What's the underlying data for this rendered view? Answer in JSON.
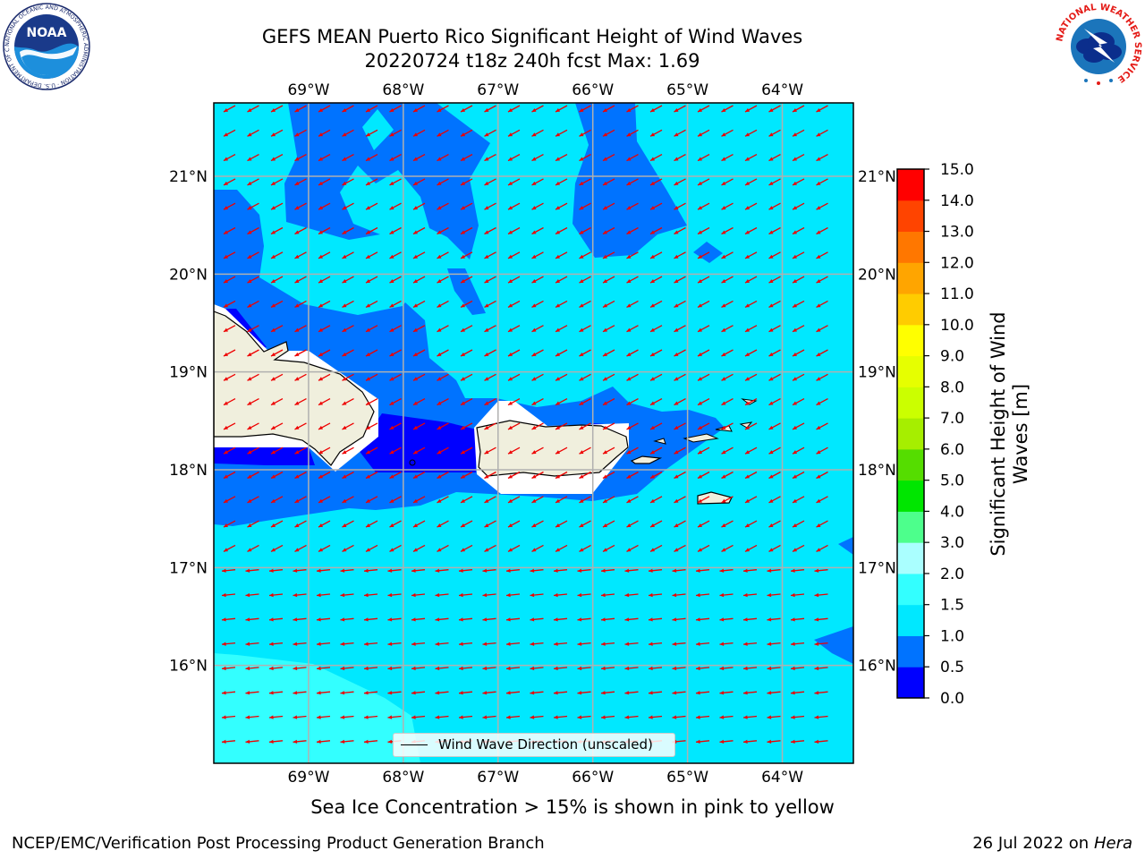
{
  "title": {
    "line1": "GEFS MEAN Puerto Rico Significant Height of Wind Waves",
    "line2": "20220724 t18z 240h fcst   Max: 1.69"
  },
  "map": {
    "lon_range": [
      -70,
      -63.25
    ],
    "lat_range": [
      15,
      21.75
    ],
    "lon_ticks": [
      {
        "value": -69,
        "label": "69°W"
      },
      {
        "value": -68,
        "label": "68°W"
      },
      {
        "value": -67,
        "label": "67°W"
      },
      {
        "value": -66,
        "label": "66°W"
      },
      {
        "value": -65,
        "label": "65°W"
      },
      {
        "value": -64,
        "label": "64°W"
      }
    ],
    "lat_ticks": [
      {
        "value": 21,
        "label": "21°N"
      },
      {
        "value": 20,
        "label": "20°N"
      },
      {
        "value": 19,
        "label": "19°N"
      },
      {
        "value": 18,
        "label": "18°N"
      },
      {
        "value": 17,
        "label": "17°N"
      },
      {
        "value": 16,
        "label": "16°N"
      }
    ],
    "grid": true,
    "wind_direction": "east-northeast to west-southwest",
    "colors": {
      "background_band": "#00ffff",
      "land": "#f0efdd",
      "grid": "#b0b0b0",
      "arrow": "#ee0000"
    }
  },
  "legend": {
    "label": "Wind Wave Direction (unscaled)",
    "placement": "lower-center"
  },
  "colorbar": {
    "title": "Significant Height of Wind Waves [m]",
    "levels": [
      "0.0",
      "0.5",
      "1.0",
      "1.5",
      "2.0",
      "3.0",
      "4.0",
      "5.0",
      "6.0",
      "7.0",
      "8.0",
      "9.0",
      "10.0",
      "11.0",
      "12.0",
      "13.0",
      "14.0",
      "15.0"
    ],
    "colors": [
      "#0000ff",
      "#0073ff",
      "#00e8ff",
      "#33ffff",
      "#aaffff",
      "#4dff8c",
      "#00e600",
      "#55dd00",
      "#a6ee00",
      "#cbff00",
      "#e6ff00",
      "#ffff00",
      "#ffcc00",
      "#ffa500",
      "#ff7700",
      "#ff4400",
      "#ff0000"
    ]
  },
  "footer": {
    "sea_ice_note": "Sea Ice Concentration > 15% is shown in pink to yellow",
    "branch": "NCEP/EMC/Verification Post Processing Product Generation Branch",
    "date_prefix": "26 Jul 2022 on",
    "date_machine": "Hera"
  },
  "logos": {
    "noaa_icon": "noaa-logo-icon",
    "noaa_text": "NOAA",
    "noaa_ring_text": "NATIONAL OCEANIC AND ATMOSPHERIC ADMINISTRATION · U.S. DEPARTMENT OF COMMERCE ·",
    "nws_icon": "national-weather-service-logo-icon",
    "nws_ring_text": "NATIONAL WEATHER SERVICE"
  }
}
